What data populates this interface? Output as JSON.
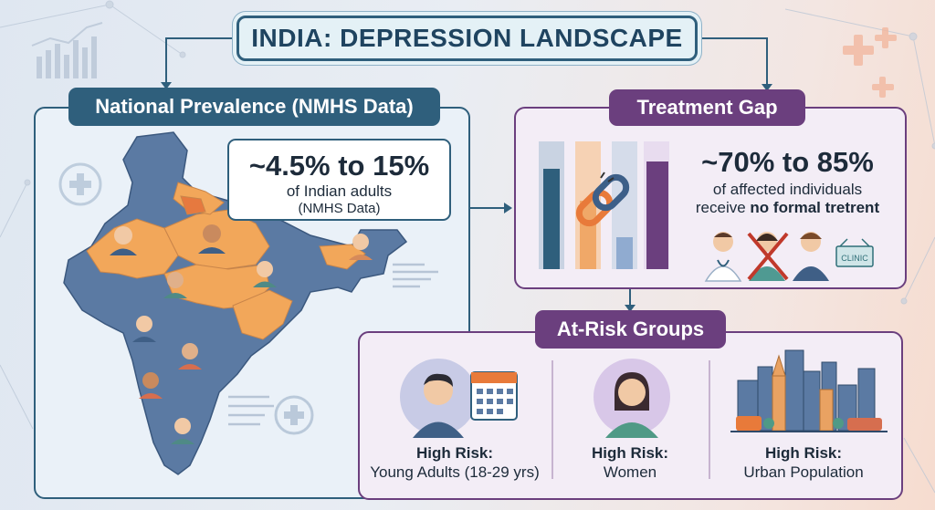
{
  "title": "INDIA: DEPRESSION LANDSCAPE",
  "national": {
    "tab_label": "National Prevalence (NMHS Data)",
    "stat_value": "~4.5% to 15%",
    "stat_line1": "of Indian adults",
    "stat_line2": "(NMHS Data)"
  },
  "treatment": {
    "tab_label": "Treatment Gap",
    "stat_value": "~70% to 85%",
    "stat_line1": "of affected individuals",
    "stat_line2_prefix": "receive ",
    "stat_line2_bold": "no formal tretrent",
    "clinic_sign": "CLINIC"
  },
  "risk": {
    "tab_label": "At-Risk Groups",
    "groups": [
      {
        "title": "High Risk:",
        "desc": "Young Adults (18-29 yrs)"
      },
      {
        "title": "High Risk:",
        "desc": "Women"
      },
      {
        "title": "High Risk:",
        "desc": "Urban Population"
      }
    ]
  },
  "colors": {
    "navy": "#2f5f7c",
    "purple": "#6b3f7e",
    "map_blue": "#5b7aa3",
    "map_orange": "#f2a75a"
  }
}
